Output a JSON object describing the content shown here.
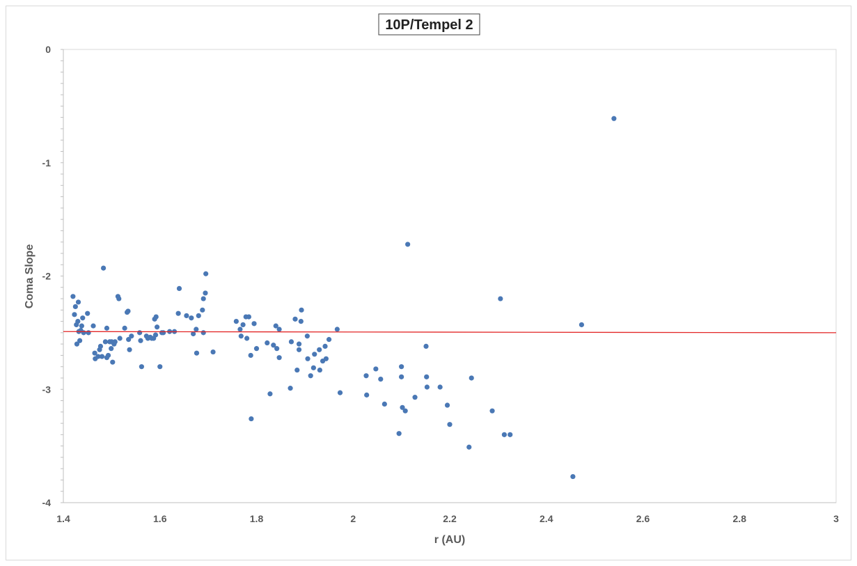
{
  "chart_data": {
    "type": "scatter",
    "title": "10P/Tempel 2",
    "xlabel": "r (AU)",
    "ylabel": "Coma Slope",
    "xlim": [
      1.4,
      3.0
    ],
    "ylim": [
      -4,
      0
    ],
    "x_ticks": [
      "1.4",
      "1.6",
      "1.8",
      "2",
      "2.2",
      "2.4",
      "2.6",
      "2.8",
      "3"
    ],
    "y_ticks": [
      "0",
      "-1",
      "-2",
      "-3",
      "-4"
    ],
    "grid": false,
    "legend": "none",
    "marker_color": "#4a78b5",
    "trend_line": {
      "type": "linear",
      "color": "#e32626",
      "x": [
        1.4,
        3.0
      ],
      "y": [
        -2.49,
        -2.5
      ]
    },
    "points": [
      [
        1.42,
        -2.18
      ],
      [
        1.423,
        -2.34
      ],
      [
        1.425,
        -2.27
      ],
      [
        1.427,
        -2.43
      ],
      [
        1.428,
        -2.6
      ],
      [
        1.43,
        -2.4
      ],
      [
        1.431,
        -2.23
      ],
      [
        1.432,
        -2.49
      ],
      [
        1.434,
        -2.57
      ],
      [
        1.436,
        -2.48
      ],
      [
        1.438,
        -2.44
      ],
      [
        1.44,
        -2.37
      ],
      [
        1.442,
        -2.5
      ],
      [
        1.45,
        -2.33
      ],
      [
        1.452,
        -2.5
      ],
      [
        1.462,
        -2.44
      ],
      [
        1.465,
        -2.68
      ],
      [
        1.466,
        -2.73
      ],
      [
        1.472,
        -2.71
      ],
      [
        1.475,
        -2.65
      ],
      [
        1.477,
        -2.62
      ],
      [
        1.48,
        -2.71
      ],
      [
        1.483,
        -1.93
      ],
      [
        1.487,
        -2.58
      ],
      [
        1.49,
        -2.72
      ],
      [
        1.49,
        -2.46
      ],
      [
        1.493,
        -2.7
      ],
      [
        1.496,
        -2.58
      ],
      [
        1.499,
        -2.64
      ],
      [
        1.5,
        -2.58
      ],
      [
        1.502,
        -2.76
      ],
      [
        1.505,
        -2.6
      ],
      [
        1.507,
        -2.58
      ],
      [
        1.513,
        -2.18
      ],
      [
        1.515,
        -2.2
      ],
      [
        1.517,
        -2.55
      ],
      [
        1.527,
        -2.46
      ],
      [
        1.532,
        -2.32
      ],
      [
        1.534,
        -2.31
      ],
      [
        1.535,
        -2.56
      ],
      [
        1.537,
        -2.65
      ],
      [
        1.541,
        -2.53
      ],
      [
        1.558,
        -2.5
      ],
      [
        1.56,
        -2.57
      ],
      [
        1.562,
        -2.8
      ],
      [
        1.572,
        -2.53
      ],
      [
        1.575,
        -2.55
      ],
      [
        1.58,
        -2.54
      ],
      [
        1.583,
        -2.55
      ],
      [
        1.587,
        -2.55
      ],
      [
        1.589,
        -2.38
      ],
      [
        1.591,
        -2.52
      ],
      [
        1.592,
        -2.36
      ],
      [
        1.594,
        -2.45
      ],
      [
        1.6,
        -2.8
      ],
      [
        1.604,
        -2.5
      ],
      [
        1.607,
        -2.5
      ],
      [
        1.62,
        -2.49
      ],
      [
        1.63,
        -2.49
      ],
      [
        1.638,
        -2.33
      ],
      [
        1.64,
        -2.11
      ],
      [
        1.655,
        -2.35
      ],
      [
        1.665,
        -2.37
      ],
      [
        1.669,
        -2.51
      ],
      [
        1.675,
        -2.47
      ],
      [
        1.676,
        -2.68
      ],
      [
        1.68,
        -2.35
      ],
      [
        1.688,
        -2.3
      ],
      [
        1.69,
        -2.5
      ],
      [
        1.69,
        -2.2
      ],
      [
        1.694,
        -2.15
      ],
      [
        1.695,
        -1.98
      ],
      [
        1.71,
        -2.67
      ],
      [
        1.758,
        -2.4
      ],
      [
        1.766,
        -2.47
      ],
      [
        1.768,
        -2.53
      ],
      [
        1.772,
        -2.43
      ],
      [
        1.778,
        -2.36
      ],
      [
        1.78,
        -2.55
      ],
      [
        1.784,
        -2.36
      ],
      [
        1.788,
        -2.7
      ],
      [
        1.789,
        -3.26
      ],
      [
        1.795,
        -2.42
      ],
      [
        1.8,
        -2.64
      ],
      [
        1.822,
        -2.59
      ],
      [
        1.828,
        -3.04
      ],
      [
        1.835,
        -2.61
      ],
      [
        1.84,
        -2.44
      ],
      [
        1.842,
        -2.64
      ],
      [
        1.847,
        -2.47
      ],
      [
        1.847,
        -2.72
      ],
      [
        1.87,
        -2.99
      ],
      [
        1.872,
        -2.58
      ],
      [
        1.88,
        -2.38
      ],
      [
        1.884,
        -2.83
      ],
      [
        1.888,
        -2.65
      ],
      [
        1.888,
        -2.6
      ],
      [
        1.892,
        -2.4
      ],
      [
        1.893,
        -2.3
      ],
      [
        1.905,
        -2.53
      ],
      [
        1.906,
        -2.73
      ],
      [
        1.912,
        -2.88
      ],
      [
        1.918,
        -2.81
      ],
      [
        1.92,
        -2.69
      ],
      [
        1.93,
        -2.65
      ],
      [
        1.931,
        -2.83
      ],
      [
        1.937,
        -2.75
      ],
      [
        1.942,
        -2.62
      ],
      [
        1.944,
        -2.73
      ],
      [
        1.95,
        -2.56
      ],
      [
        1.967,
        -2.47
      ],
      [
        1.973,
        -3.03
      ],
      [
        2.027,
        -2.88
      ],
      [
        2.028,
        -3.05
      ],
      [
        2.047,
        -2.82
      ],
      [
        2.057,
        -2.91
      ],
      [
        2.065,
        -3.13
      ],
      [
        2.095,
        -3.39
      ],
      [
        2.1,
        -2.8
      ],
      [
        2.1,
        -2.89
      ],
      [
        2.102,
        -3.16
      ],
      [
        2.108,
        -3.19
      ],
      [
        2.113,
        -1.72
      ],
      [
        2.128,
        -3.07
      ],
      [
        2.151,
        -2.62
      ],
      [
        2.152,
        -2.89
      ],
      [
        2.153,
        -2.98
      ],
      [
        2.18,
        -2.98
      ],
      [
        2.195,
        -3.14
      ],
      [
        2.2,
        -3.31
      ],
      [
        2.24,
        -3.51
      ],
      [
        2.245,
        -2.9
      ],
      [
        2.288,
        -3.19
      ],
      [
        2.305,
        -2.2
      ],
      [
        2.313,
        -3.4
      ],
      [
        2.325,
        -3.4
      ],
      [
        2.455,
        -3.77
      ],
      [
        2.473,
        -2.43
      ],
      [
        2.54,
        -0.61
      ]
    ]
  }
}
